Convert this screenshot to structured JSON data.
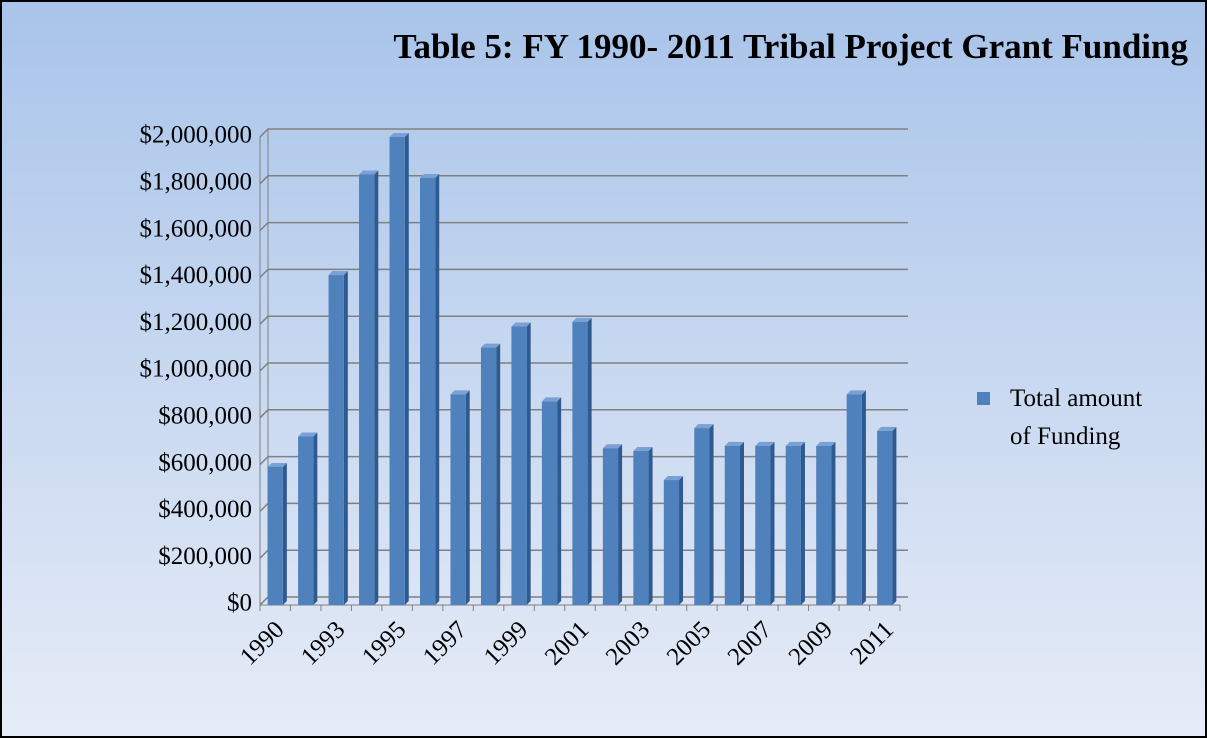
{
  "chart_data": {
    "type": "bar",
    "title": "Table 5: FY 1990- 2011 Tribal Project Grant Funding",
    "categories": [
      "1990",
      null,
      "1993",
      null,
      "1995",
      null,
      "1997",
      null,
      "1999",
      null,
      "2001",
      null,
      "2003",
      null,
      "2005",
      null,
      "2007",
      null,
      "2009",
      null,
      "2011"
    ],
    "series": [
      {
        "name": "Total amount of Funding",
        "color": "#4f81bd",
        "values": [
          590000,
          720000,
          1410000,
          1840000,
          2000000,
          1825000,
          900000,
          1100000,
          1190000,
          870000,
          1210000,
          670000,
          658000,
          534000,
          756000,
          680000,
          680000,
          680000,
          680000,
          900000,
          744000
        ]
      }
    ],
    "ylim": [
      0,
      2000000
    ],
    "yticks": [
      {
        "value": 0,
        "label": "$0"
      },
      {
        "value": 200000,
        "label": "$200,000"
      },
      {
        "value": 400000,
        "label": "$400,000"
      },
      {
        "value": 600000,
        "label": "$600,000"
      },
      {
        "value": 800000,
        "label": "$800,000"
      },
      {
        "value": 1000000,
        "label": "$1,000,000"
      },
      {
        "value": 1200000,
        "label": "$1,200,000"
      },
      {
        "value": 1400000,
        "label": "$1,400,000"
      },
      {
        "value": 1600000,
        "label": "$1,600,000"
      },
      {
        "value": 1800000,
        "label": "$1,800,000"
      },
      {
        "value": 2000000,
        "label": "$2,000,000"
      }
    ],
    "grid": true,
    "legend": "right"
  }
}
